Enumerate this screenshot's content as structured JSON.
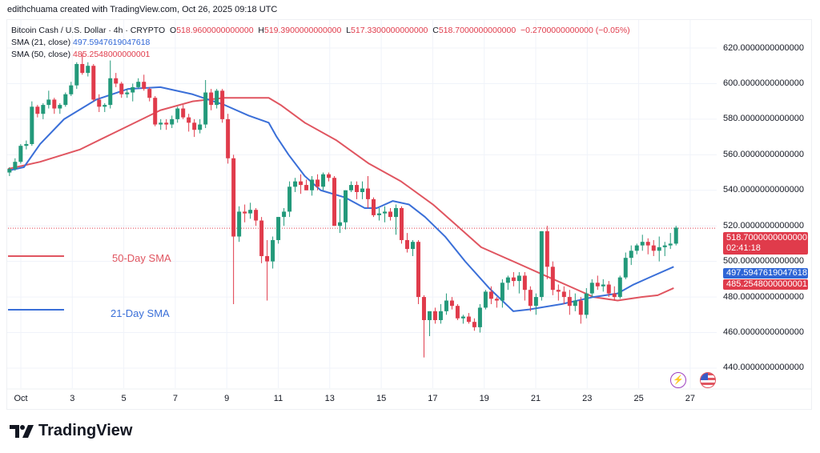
{
  "credit": "edithchuama created with TradingView.com, Oct 26, 2025 09:18 UTC",
  "legend": {
    "symbol": "Bitcoin Cash / U.S. Dollar · 4h · CRYPTO",
    "o_label": "O",
    "o": "518.9600000000000",
    "h_label": "H",
    "h": "519.3900000000000",
    "l_label": "L",
    "l": "517.3300000000000",
    "c_label": "C",
    "c": "518.7000000000000",
    "change": "−0.2700000000000 (−0.05%)",
    "sma21_label": "SMA (21, close)",
    "sma21_value": "497.5947619047618",
    "sma50_label": "SMA (50, close)",
    "sma50_value": "485.2548000000001"
  },
  "annotations": {
    "sma50": "50-Day SMA",
    "sma21": "21-Day SMA"
  },
  "price_tags": {
    "last": "518.7000000000000",
    "countdown": "02:41:18",
    "sma21": "497.5947619047618",
    "sma50": "485.2548000000001"
  },
  "colors": {
    "up": "#22997a",
    "down": "#e03b4b",
    "sma21": "#3a6fd8",
    "sma50": "#e05560"
  },
  "logo_text": "TradingView",
  "chart_data": {
    "type": "candlestick",
    "title": "Bitcoin Cash / U.S. Dollar · 4h",
    "x_ticks": [
      {
        "day": 1,
        "label": "Oct"
      },
      {
        "day": 3,
        "label": "3"
      },
      {
        "day": 5,
        "label": "5"
      },
      {
        "day": 7,
        "label": "7"
      },
      {
        "day": 9,
        "label": "9"
      },
      {
        "day": 11,
        "label": "11"
      },
      {
        "day": 13,
        "label": "13"
      },
      {
        "day": 15,
        "label": "15"
      },
      {
        "day": 17,
        "label": "17"
      },
      {
        "day": 19,
        "label": "19"
      },
      {
        "day": 21,
        "label": "21"
      },
      {
        "day": 23,
        "label": "23"
      },
      {
        "day": 25,
        "label": "25"
      },
      {
        "day": 27,
        "label": "27"
      }
    ],
    "y_ticks": [
      "620.0000000000000",
      "600.0000000000000",
      "580.0000000000000",
      "560.0000000000000",
      "540.0000000000000",
      "520.0000000000000",
      "500.0000000000000",
      "480.0000000000000",
      "460.0000000000000",
      "440.0000000000000"
    ],
    "y_tick_values": [
      620,
      600,
      580,
      560,
      540,
      520,
      500,
      480,
      460,
      440
    ],
    "ylim": [
      440,
      620
    ],
    "day_range": [
      0.56,
      26.45
    ],
    "last_price": 518.7,
    "ohlc": [
      [
        550,
        553,
        548,
        552
      ],
      [
        552,
        558,
        551,
        556
      ],
      [
        556,
        566,
        555,
        565
      ],
      [
        565,
        568,
        563,
        566
      ],
      [
        566,
        590,
        565,
        587
      ],
      [
        587,
        588,
        581,
        583
      ],
      [
        583,
        589,
        580,
        588
      ],
      [
        588,
        596,
        586,
        591
      ],
      [
        591,
        592,
        583,
        586
      ],
      [
        586,
        589,
        583,
        588
      ],
      [
        588,
        595,
        587,
        594
      ],
      [
        594,
        601,
        593,
        599
      ],
      [
        599,
        612,
        597,
        611
      ],
      [
        611,
        617,
        605,
        606
      ],
      [
        606,
        612,
        604,
        610
      ],
      [
        610,
        611,
        590,
        591
      ],
      [
        591,
        594,
        584,
        587
      ],
      [
        587,
        589,
        584,
        588
      ],
      [
        588,
        613,
        586,
        603
      ],
      [
        603,
        606,
        598,
        600
      ],
      [
        600,
        601,
        592,
        594
      ],
      [
        594,
        597,
        592,
        595
      ],
      [
        595,
        600,
        590,
        598
      ],
      [
        598,
        603,
        597,
        601
      ],
      [
        601,
        605,
        596,
        597
      ],
      [
        597,
        598,
        590,
        592
      ],
      [
        592,
        593,
        576,
        577
      ],
      [
        577,
        580,
        574,
        578
      ],
      [
        578,
        580,
        574,
        577
      ],
      [
        577,
        582,
        575,
        580
      ],
      [
        580,
        587,
        578,
        586
      ],
      [
        586,
        588,
        580,
        581
      ],
      [
        581,
        583,
        573,
        578
      ],
      [
        578,
        580,
        570,
        574
      ],
      [
        574,
        580,
        572,
        577
      ],
      [
        577,
        602,
        575,
        595
      ],
      [
        595,
        597,
        585,
        588
      ],
      [
        588,
        597,
        586,
        596
      ],
      [
        596,
        597,
        578,
        580
      ],
      [
        580,
        583,
        555,
        558
      ],
      [
        558,
        560,
        476,
        514
      ],
      [
        514,
        531,
        511,
        528
      ],
      [
        528,
        532,
        522,
        527
      ],
      [
        527,
        533,
        524,
        529
      ],
      [
        529,
        530,
        520,
        523
      ],
      [
        523,
        525,
        499,
        503
      ],
      [
        503,
        512,
        478,
        500
      ],
      [
        500,
        514,
        496,
        512
      ],
      [
        512,
        525,
        510,
        525
      ],
      [
        525,
        530,
        520,
        528
      ],
      [
        528,
        545,
        525,
        542
      ],
      [
        542,
        547,
        539,
        545
      ],
      [
        545,
        549,
        538,
        543
      ],
      [
        543,
        546,
        540,
        540
      ],
      [
        540,
        548,
        537,
        546
      ],
      [
        546,
        549,
        540,
        542
      ],
      [
        542,
        550,
        540,
        549
      ],
      [
        549,
        550,
        545,
        547
      ],
      [
        547,
        548,
        520,
        520
      ],
      [
        520,
        535,
        516,
        522
      ],
      [
        522,
        540,
        518,
        540
      ],
      [
        540,
        545,
        539,
        543
      ],
      [
        543,
        545,
        535,
        539
      ],
      [
        539,
        545,
        535,
        541
      ],
      [
        541,
        548,
        530,
        535
      ],
      [
        535,
        536,
        525,
        526
      ],
      [
        526,
        530,
        523,
        527
      ],
      [
        527,
        531,
        522,
        528
      ],
      [
        528,
        530,
        523,
        525
      ],
      [
        525,
        532,
        515,
        530
      ],
      [
        530,
        531,
        510,
        512
      ],
      [
        512,
        516,
        505,
        507
      ],
      [
        507,
        512,
        503,
        511
      ],
      [
        511,
        512,
        476,
        480
      ],
      [
        480,
        481,
        446,
        467
      ],
      [
        467,
        472,
        458,
        472
      ],
      [
        472,
        474,
        465,
        467
      ],
      [
        467,
        476,
        465,
        472
      ],
      [
        472,
        482,
        470,
        478
      ],
      [
        478,
        480,
        473,
        475
      ],
      [
        475,
        476,
        467,
        468
      ],
      [
        468,
        470,
        465,
        469
      ],
      [
        469,
        471,
        465,
        466
      ],
      [
        466,
        468,
        461,
        463
      ],
      [
        463,
        476,
        460,
        474
      ],
      [
        474,
        484,
        473,
        483
      ],
      [
        483,
        486,
        476,
        479
      ],
      [
        479,
        480,
        474,
        478
      ],
      [
        478,
        490,
        474,
        488
      ],
      [
        488,
        492,
        484,
        491
      ],
      [
        491,
        494,
        486,
        489
      ],
      [
        489,
        494,
        482,
        492
      ],
      [
        492,
        494,
        478,
        484
      ],
      [
        484,
        486,
        472,
        475
      ],
      [
        475,
        482,
        470,
        480
      ],
      [
        480,
        517,
        478,
        517
      ],
      [
        517,
        520,
        490,
        497
      ],
      [
        497,
        500,
        481,
        484
      ],
      [
        484,
        487,
        478,
        483
      ],
      [
        483,
        486,
        476,
        480
      ],
      [
        480,
        484,
        470,
        475
      ],
      [
        475,
        482,
        472,
        478
      ],
      [
        478,
        480,
        465,
        470
      ],
      [
        470,
        485,
        468,
        482
      ],
      [
        482,
        490,
        480,
        488
      ],
      [
        488,
        492,
        484,
        486
      ],
      [
        486,
        490,
        483,
        487
      ],
      [
        487,
        489,
        480,
        482
      ],
      [
        482,
        486,
        478,
        480
      ],
      [
        480,
        492,
        479,
        491
      ],
      [
        491,
        505,
        490,
        502
      ],
      [
        502,
        509,
        498,
        506
      ],
      [
        506,
        510,
        504,
        509
      ],
      [
        509,
        515,
        506,
        511
      ],
      [
        511,
        513,
        504,
        509
      ],
      [
        509,
        512,
        503,
        506
      ],
      [
        506,
        514,
        500,
        508
      ],
      [
        508,
        511,
        503,
        509
      ],
      [
        509,
        516,
        507,
        510
      ],
      [
        510,
        520,
        509,
        519
      ]
    ],
    "series": [
      {
        "name": "SMA (21, close)",
        "points": [
          [
            0.5,
            551
          ],
          [
            1.12,
            553
          ],
          [
            1.75,
            566
          ],
          [
            2.68,
            580
          ],
          [
            3.93,
            591
          ],
          [
            5.17,
            597
          ],
          [
            6.42,
            598
          ],
          [
            7.67,
            594
          ],
          [
            8.91,
            588
          ],
          [
            9.85,
            582
          ],
          [
            10.63,
            578
          ],
          [
            10.94,
            570
          ],
          [
            11.4,
            560
          ],
          [
            12.03,
            548
          ],
          [
            12.65,
            540
          ],
          [
            13.59,
            536
          ],
          [
            14.36,
            530
          ],
          [
            14.83,
            530
          ],
          [
            15.45,
            534
          ],
          [
            16.08,
            532
          ],
          [
            16.7,
            525
          ],
          [
            17.48,
            514
          ],
          [
            18.26,
            500
          ],
          [
            19.19,
            485
          ],
          [
            20.13,
            472
          ],
          [
            20.75,
            473
          ],
          [
            22.0,
            476
          ],
          [
            23.24,
            480
          ],
          [
            24.18,
            482
          ],
          [
            24.8,
            487
          ],
          [
            25.42,
            491
          ],
          [
            26.36,
            497
          ]
        ]
      },
      {
        "name": "SMA (50, close)",
        "points": [
          [
            0.5,
            552
          ],
          [
            1.75,
            556
          ],
          [
            3.31,
            563
          ],
          [
            4.86,
            574
          ],
          [
            6.42,
            585
          ],
          [
            7.67,
            590
          ],
          [
            8.91,
            592
          ],
          [
            9.85,
            592
          ],
          [
            10.63,
            592
          ],
          [
            11.09,
            588
          ],
          [
            12.03,
            578
          ],
          [
            13.27,
            568
          ],
          [
            14.52,
            555
          ],
          [
            15.77,
            545
          ],
          [
            17.01,
            532
          ],
          [
            17.95,
            520
          ],
          [
            18.88,
            508
          ],
          [
            20.13,
            500
          ],
          [
            21.37,
            492
          ],
          [
            22.31,
            486
          ],
          [
            23.24,
            480
          ],
          [
            24.18,
            478
          ],
          [
            25.11,
            480
          ],
          [
            25.74,
            481
          ],
          [
            26.36,
            485
          ]
        ]
      }
    ]
  }
}
